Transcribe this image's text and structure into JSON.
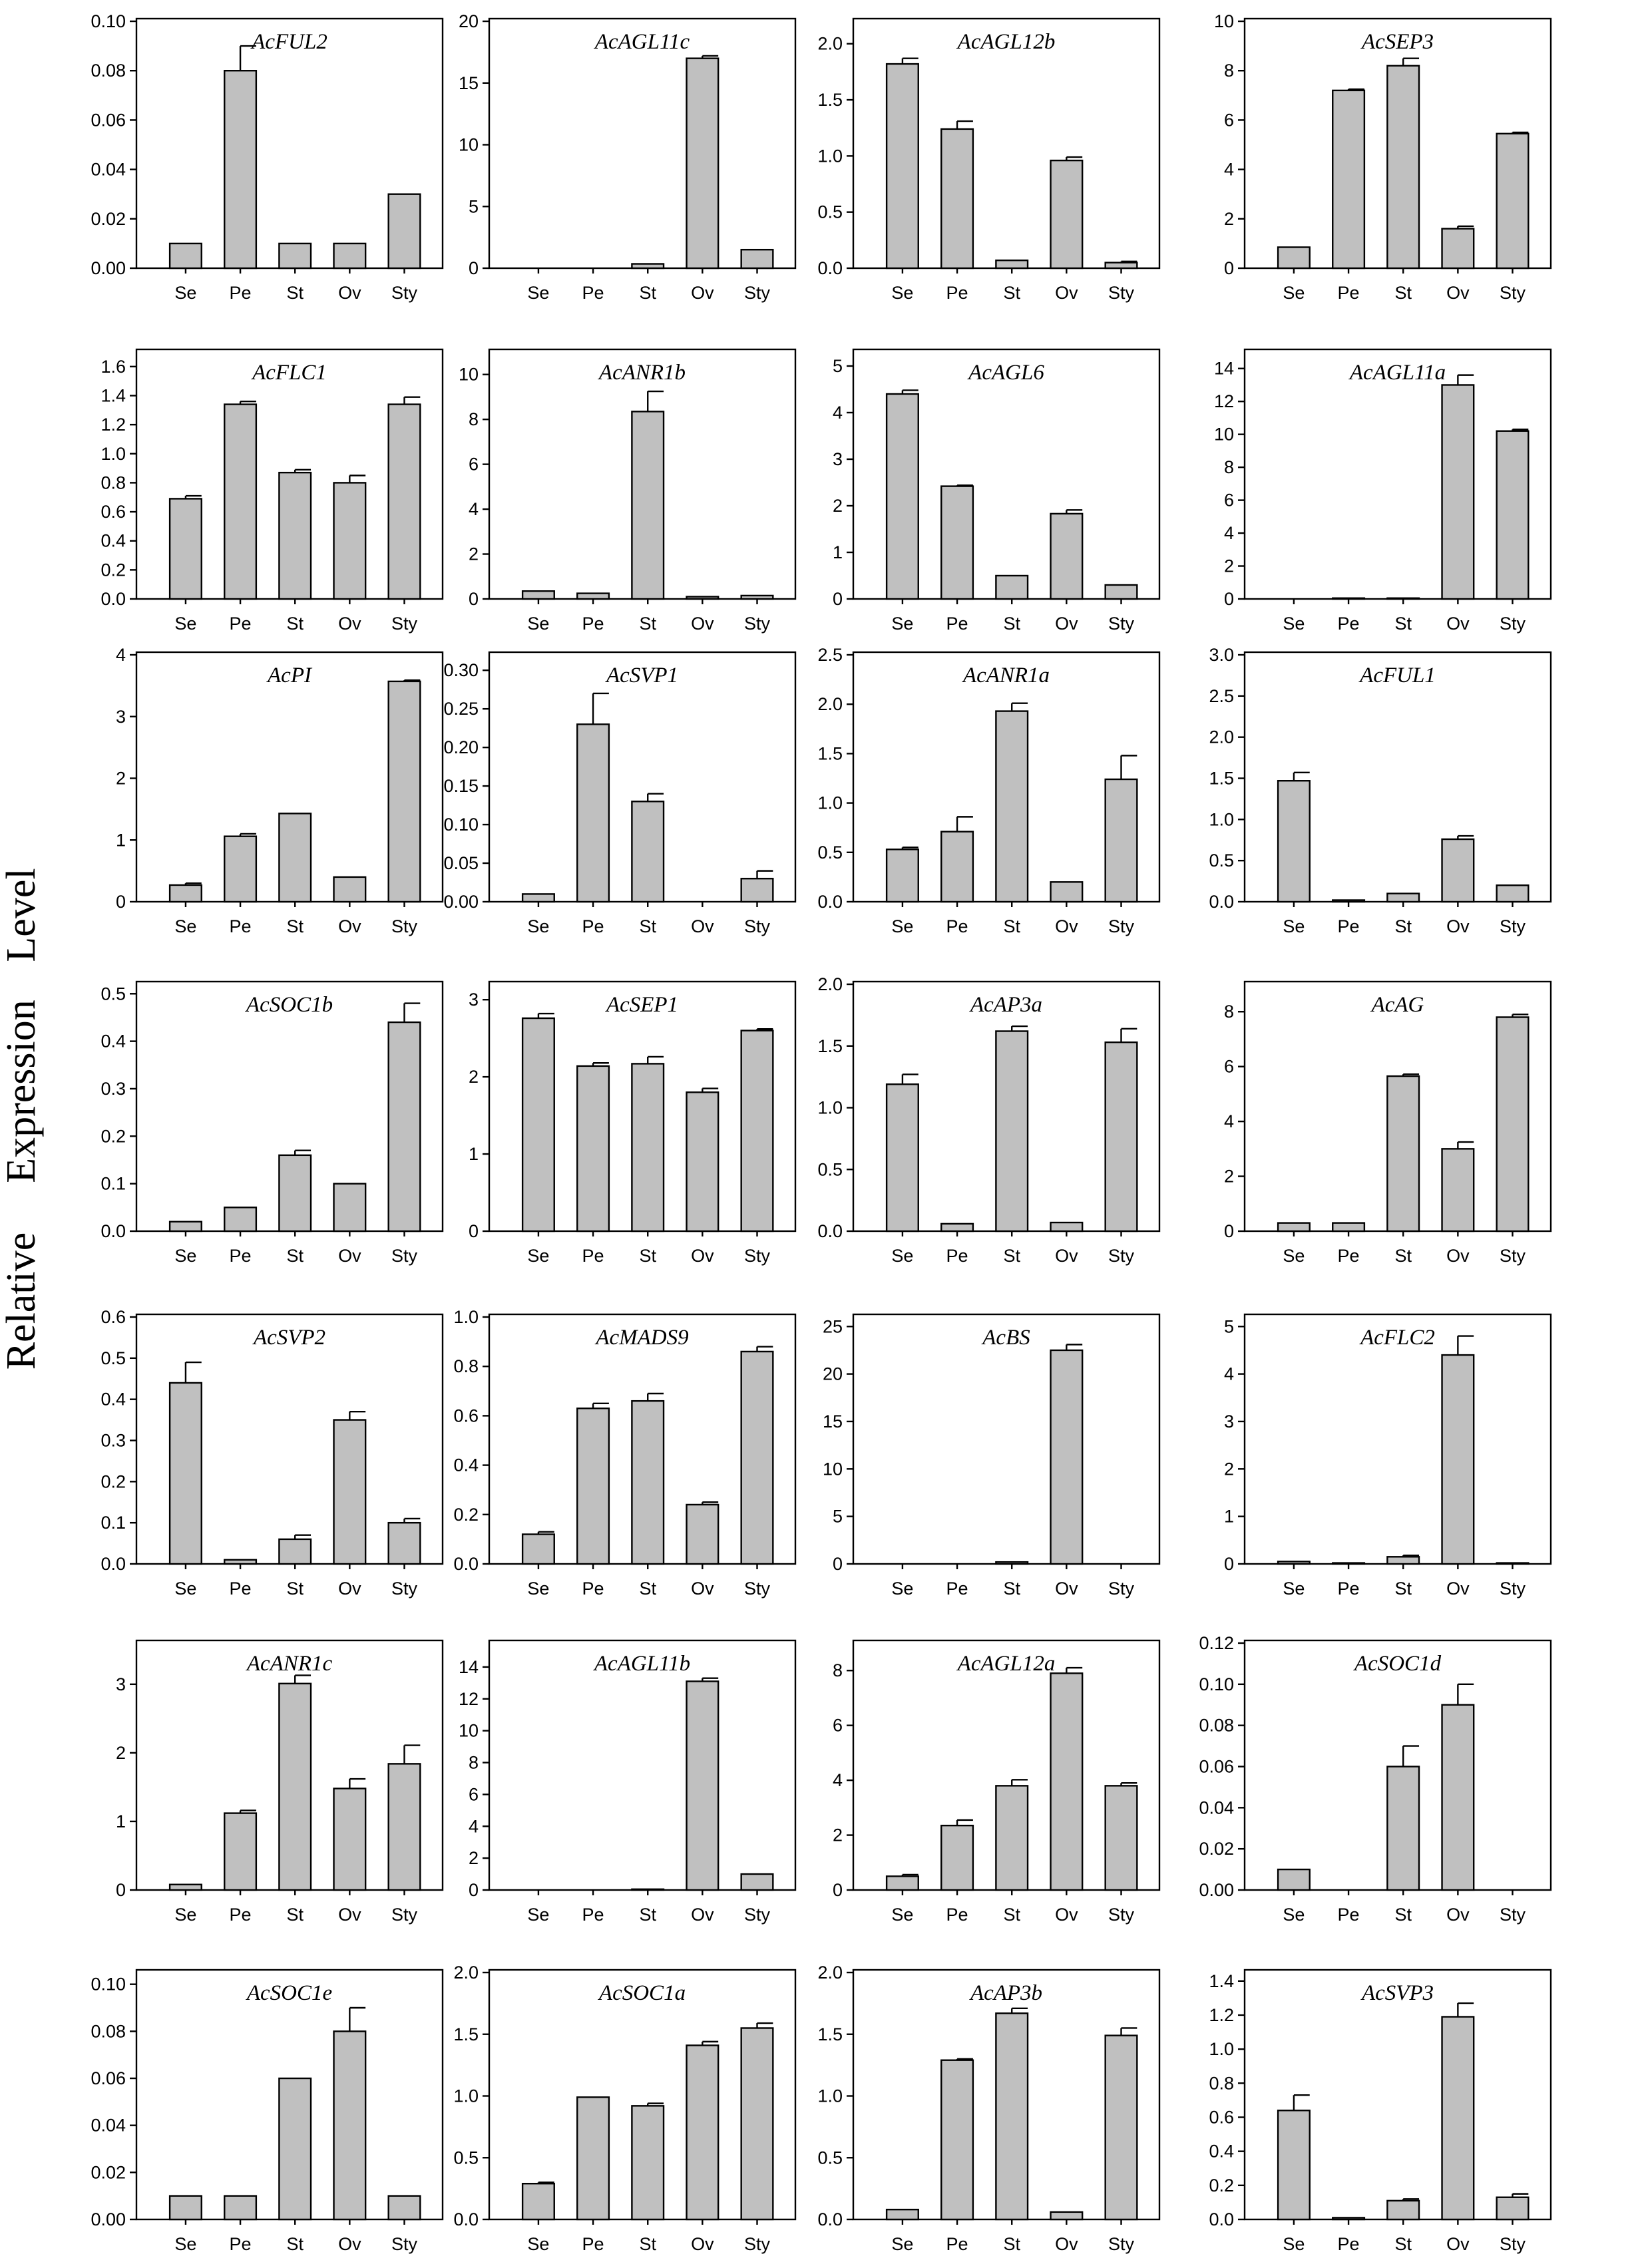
{
  "ylabel_words": [
    "Level",
    "Expression",
    "Relative"
  ],
  "categories": [
    "Se",
    "Pe",
    "St",
    "Ov",
    "Sty"
  ],
  "chart_data": [
    {
      "type": "bar",
      "title": "AcFUL2",
      "ylim": [
        0,
        0.1
      ],
      "ticks": [
        "0.00",
        "0.02",
        "0.04",
        "0.06",
        "0.08",
        "0.10"
      ],
      "values": [
        0.01,
        0.08,
        0.01,
        0.01,
        0.03
      ],
      "errors": [
        0,
        0.01,
        0,
        0,
        0
      ]
    },
    {
      "type": "bar",
      "title": "AcAGL11c",
      "ylim": [
        0,
        20
      ],
      "ticks": [
        "0",
        "5",
        "10",
        "15",
        "20"
      ],
      "values": [
        0,
        0,
        0.35,
        17.0,
        1.5
      ],
      "errors": [
        0,
        0,
        0,
        0.2,
        0
      ]
    },
    {
      "type": "bar",
      "title": "AcAGL12b",
      "ylim": [
        0,
        2.2
      ],
      "ticks": [
        "0.0",
        "0.5",
        "1.0",
        "1.5",
        "2.0"
      ],
      "values": [
        1.82,
        1.24,
        0.07,
        0.96,
        0.05
      ],
      "errors": [
        0.05,
        0.07,
        0,
        0.03,
        0.01
      ]
    },
    {
      "type": "bar",
      "title": "AcSEP3",
      "ylim": [
        0,
        10
      ],
      "ticks": [
        "0",
        "2",
        "4",
        "6",
        "8",
        "10"
      ],
      "values": [
        0.85,
        7.2,
        8.2,
        1.6,
        5.45
      ],
      "errors": [
        0,
        0.05,
        0.3,
        0.1,
        0.05
      ]
    },
    {
      "type": "bar",
      "title": "AcFLC1",
      "ylim": [
        0,
        1.7
      ],
      "ticks": [
        "0.0",
        "0.2",
        "0.4",
        "0.6",
        "0.8",
        "1.0",
        "1.2",
        "1.4",
        "1.6"
      ],
      "values": [
        0.69,
        1.34,
        0.87,
        0.8,
        1.34
      ],
      "errors": [
        0.02,
        0.02,
        0.02,
        0.05,
        0.05
      ]
    },
    {
      "type": "bar",
      "title": "AcANR1b",
      "ylim": [
        0,
        11
      ],
      "ticks": [
        "0",
        "2",
        "4",
        "6",
        "8",
        "10"
      ],
      "values": [
        0.35,
        0.25,
        8.35,
        0.1,
        0.15
      ],
      "errors": [
        0,
        0,
        0.9,
        0,
        0
      ]
    },
    {
      "type": "bar",
      "title": "AcAGL6",
      "ylim": [
        0,
        5.3
      ],
      "ticks": [
        "0",
        "1",
        "2",
        "3",
        "4",
        "5"
      ],
      "values": [
        4.4,
        2.42,
        0.5,
        1.83,
        0.3
      ],
      "errors": [
        0.08,
        0.02,
        0,
        0.08,
        0
      ]
    },
    {
      "type": "bar",
      "title": "AcAGL11a",
      "ylim": [
        0,
        15
      ],
      "ticks": [
        "0",
        "2",
        "4",
        "6",
        "8",
        "10",
        "12",
        "14"
      ],
      "values": [
        0,
        0.05,
        0.05,
        13.0,
        10.2
      ],
      "errors": [
        0,
        0,
        0,
        0.6,
        0.1
      ]
    },
    {
      "type": "bar",
      "title": "AcPI",
      "ylim": [
        0,
        4
      ],
      "ticks": [
        "0",
        "1",
        "2",
        "3",
        "4"
      ],
      "values": [
        0.27,
        1.06,
        1.43,
        0.4,
        3.57
      ],
      "errors": [
        0.03,
        0.04,
        0,
        0,
        0.02
      ]
    },
    {
      "type": "bar",
      "title": "AcSVP1",
      "ylim": [
        0,
        0.32
      ],
      "ticks": [
        "0.00",
        "0.05",
        "0.10",
        "0.15",
        "0.20",
        "0.25",
        "0.30"
      ],
      "values": [
        0.01,
        0.23,
        0.13,
        0,
        0.03
      ],
      "errors": [
        0,
        0.04,
        0.01,
        0,
        0.01
      ]
    },
    {
      "type": "bar",
      "title": "AcANR1a",
      "ylim": [
        0,
        2.5
      ],
      "ticks": [
        "0.0",
        "0.5",
        "1.0",
        "1.5",
        "2.0",
        "2.5"
      ],
      "values": [
        0.53,
        0.71,
        1.93,
        0.2,
        1.24
      ],
      "errors": [
        0.02,
        0.15,
        0.08,
        0,
        0.24
      ]
    },
    {
      "type": "bar",
      "title": "AcFUL1",
      "ylim": [
        0,
        3.0
      ],
      "ticks": [
        "0.0",
        "0.5",
        "1.0",
        "1.5",
        "2.0",
        "2.5",
        "3.0"
      ],
      "values": [
        1.47,
        0.02,
        0.1,
        0.76,
        0.2
      ],
      "errors": [
        0.1,
        0,
        0,
        0.04,
        0
      ]
    },
    {
      "type": "bar",
      "title": "AcSOC1b",
      "ylim": [
        0,
        0.52
      ],
      "ticks": [
        "0.0",
        "0.1",
        "0.2",
        "0.3",
        "0.4",
        "0.5"
      ],
      "values": [
        0.02,
        0.05,
        0.16,
        0.1,
        0.44
      ],
      "errors": [
        0,
        0,
        0.01,
        0,
        0.04
      ]
    },
    {
      "type": "bar",
      "title": "AcSEP1",
      "ylim": [
        0,
        3.2
      ],
      "ticks": [
        "0",
        "1",
        "2",
        "3"
      ],
      "values": [
        2.76,
        2.14,
        2.17,
        1.8,
        2.6
      ],
      "errors": [
        0.06,
        0.04,
        0.09,
        0.05,
        0.02
      ]
    },
    {
      "type": "bar",
      "title": "AcAP3a",
      "ylim": [
        0,
        2.0
      ],
      "ticks": [
        "0.0",
        "0.5",
        "1.0",
        "1.5",
        "2.0"
      ],
      "values": [
        1.19,
        0.06,
        1.62,
        0.07,
        1.53
      ],
      "errors": [
        0.08,
        0,
        0.04,
        0,
        0.11
      ]
    },
    {
      "type": "bar",
      "title": "AcAG",
      "ylim": [
        0,
        9
      ],
      "ticks": [
        "0",
        "2",
        "4",
        "6",
        "8"
      ],
      "values": [
        0.3,
        0.3,
        5.65,
        3.0,
        7.8
      ],
      "errors": [
        0,
        0,
        0.07,
        0.25,
        0.1
      ]
    },
    {
      "type": "bar",
      "title": "AcSVP2",
      "ylim": [
        0,
        0.6
      ],
      "ticks": [
        "0.0",
        "0.1",
        "0.2",
        "0.3",
        "0.4",
        "0.5",
        "0.6"
      ],
      "values": [
        0.44,
        0.01,
        0.06,
        0.35,
        0.1
      ],
      "errors": [
        0.05,
        0,
        0.01,
        0.02,
        0.01
      ]
    },
    {
      "type": "bar",
      "title": "AcMADS9",
      "ylim": [
        0,
        1.0
      ],
      "ticks": [
        "0.0",
        "0.2",
        "0.4",
        "0.6",
        "0.8",
        "1.0"
      ],
      "values": [
        0.12,
        0.63,
        0.66,
        0.24,
        0.86
      ],
      "errors": [
        0.01,
        0.02,
        0.03,
        0.01,
        0.02
      ]
    },
    {
      "type": "bar",
      "title": "AcBS",
      "ylim": [
        0,
        26
      ],
      "ticks": [
        "0",
        "5",
        "10",
        "15",
        "20",
        "25"
      ],
      "values": [
        0,
        0,
        0.2,
        22.5,
        0
      ],
      "errors": [
        0,
        0,
        0,
        0.6,
        0
      ]
    },
    {
      "type": "bar",
      "title": "AcFLC2",
      "ylim": [
        0,
        5.2
      ],
      "ticks": [
        "0",
        "1",
        "2",
        "3",
        "4",
        "5"
      ],
      "values": [
        0.05,
        0.02,
        0.15,
        4.4,
        0.02
      ],
      "errors": [
        0,
        0,
        0.03,
        0.4,
        0
      ]
    },
    {
      "type": "bar",
      "title": "AcANR1c",
      "ylim": [
        0,
        3.6
      ],
      "ticks": [
        "0",
        "1",
        "2",
        "3"
      ],
      "values": [
        0.08,
        1.12,
        3.01,
        1.48,
        1.84
      ],
      "errors": [
        0,
        0.04,
        0.12,
        0.14,
        0.27
      ]
    },
    {
      "type": "bar",
      "title": "AcAGL11b",
      "ylim": [
        0,
        15.5
      ],
      "ticks": [
        "0",
        "2",
        "4",
        "6",
        "8",
        "10",
        "12",
        "14"
      ],
      "values": [
        0,
        0,
        0.05,
        13.1,
        1.0
      ],
      "errors": [
        0,
        0,
        0,
        0.2,
        0
      ]
    },
    {
      "type": "bar",
      "title": "AcAGL12a",
      "ylim": [
        0,
        9
      ],
      "ticks": [
        "0",
        "2",
        "4",
        "6",
        "8"
      ],
      "values": [
        0.5,
        2.35,
        3.8,
        7.9,
        3.8
      ],
      "errors": [
        0.06,
        0.2,
        0.22,
        0.2,
        0.1
      ]
    },
    {
      "type": "bar",
      "title": "AcSOC1d",
      "ylim": [
        0,
        0.12
      ],
      "ticks": [
        "0.00",
        "0.02",
        "0.04",
        "0.06",
        "0.08",
        "0.10",
        "0.12"
      ],
      "values": [
        0.01,
        0,
        0.06,
        0.09,
        0
      ],
      "errors": [
        0,
        0,
        0.01,
        0.01,
        0
      ]
    },
    {
      "type": "bar",
      "title": "AcSOC1e",
      "ylim": [
        0,
        0.105
      ],
      "ticks": [
        "0.00",
        "0.02",
        "0.04",
        "0.06",
        "0.08",
        "0.10"
      ],
      "values": [
        0.01,
        0.01,
        0.06,
        0.08,
        0.01
      ],
      "errors": [
        0,
        0,
        0,
        0.01,
        0
      ]
    },
    {
      "type": "bar",
      "title": "AcSOC1a",
      "ylim": [
        0,
        2.0
      ],
      "ticks": [
        "0.0",
        "0.5",
        "1.0",
        "1.5",
        "2.0"
      ],
      "values": [
        0.29,
        0.99,
        0.92,
        1.41,
        1.55
      ],
      "errors": [
        0.01,
        0,
        0.02,
        0.03,
        0.04
      ]
    },
    {
      "type": "bar",
      "title": "AcAP3b",
      "ylim": [
        0,
        2.0
      ],
      "ticks": [
        "0.0",
        "0.5",
        "1.0",
        "1.5",
        "2.0"
      ],
      "values": [
        0.08,
        1.29,
        1.67,
        0.06,
        1.49
      ],
      "errors": [
        0,
        0.01,
        0.04,
        0,
        0.06
      ]
    },
    {
      "type": "bar",
      "title": "AcSVP3",
      "ylim": [
        0,
        1.45
      ],
      "ticks": [
        "0.0",
        "0.2",
        "0.4",
        "0.6",
        "0.8",
        "1.0",
        "1.2",
        "1.4"
      ],
      "values": [
        0.64,
        0.01,
        0.11,
        1.19,
        0.13
      ],
      "errors": [
        0.09,
        0,
        0.01,
        0.08,
        0.02
      ]
    }
  ]
}
